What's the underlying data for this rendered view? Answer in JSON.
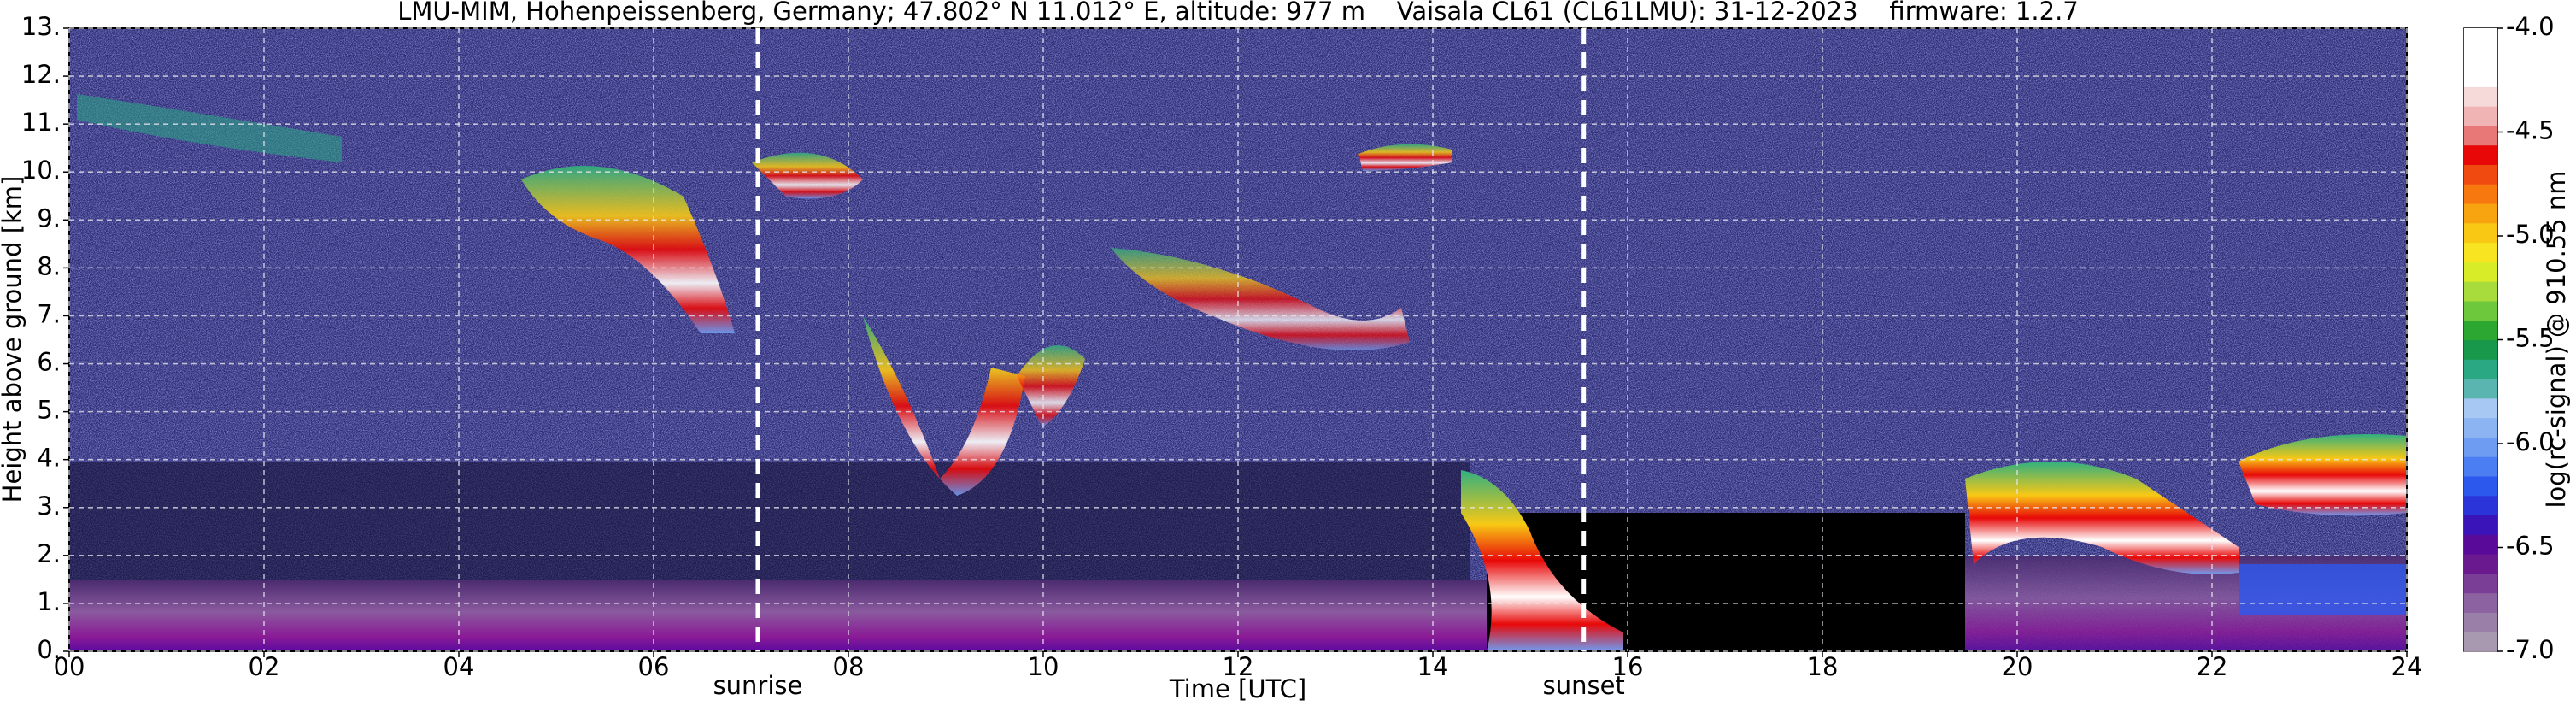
{
  "chart_data": {
    "type": "heatmap",
    "title": "LMU-MIM, Hohenpeissenberg, Germany; 47.802° N 11.012° E, altitude: 977 m    Vaisala CL61 (CL61LMU): 31-12-2023    firmware: 1.2.7",
    "x_label": "Time [UTC]",
    "y_label": "Height above ground [km]",
    "colorbar_label": "log(rc-signal) @ 910.55 nm",
    "xlim": [
      0,
      24
    ],
    "xticks": [
      {
        "value": 0,
        "label": "00"
      },
      {
        "value": 2,
        "label": "02"
      },
      {
        "value": 4,
        "label": "04"
      },
      {
        "value": 6,
        "label": "06"
      },
      {
        "value": 8,
        "label": "08"
      },
      {
        "value": 10,
        "label": "10"
      },
      {
        "value": 12,
        "label": "12"
      },
      {
        "value": 14,
        "label": "14"
      },
      {
        "value": 16,
        "label": "16"
      },
      {
        "value": 18,
        "label": "18"
      },
      {
        "value": 20,
        "label": "20"
      },
      {
        "value": 22,
        "label": "22"
      },
      {
        "value": 24,
        "label": "24"
      }
    ],
    "ylim": [
      0,
      13
    ],
    "yticks": [
      {
        "value": 0,
        "label": "0."
      },
      {
        "value": 1,
        "label": "1."
      },
      {
        "value": 2,
        "label": "2."
      },
      {
        "value": 3,
        "label": "3."
      },
      {
        "value": 4,
        "label": "4."
      },
      {
        "value": 5,
        "label": "5."
      },
      {
        "value": 6,
        "label": "6."
      },
      {
        "value": 7,
        "label": "7."
      },
      {
        "value": 8,
        "label": "8."
      },
      {
        "value": 9,
        "label": "9."
      },
      {
        "value": 10,
        "label": "10."
      },
      {
        "value": 11,
        "label": "11."
      },
      {
        "value": 12,
        "label": "12."
      },
      {
        "value": 13,
        "label": "13."
      }
    ],
    "clim": [
      -7,
      -4
    ],
    "colorbar_ticks": [
      {
        "value": -7,
        "label": "-7.0"
      },
      -6.5,
      {
        "value": -6,
        "label": "-6.0"
      },
      -5.5,
      {
        "value": -5,
        "label": "-5.0"
      },
      -4.5,
      {
        "value": -4,
        "label": "-4.0"
      }
    ],
    "colors": [
      "#a898b0",
      "#9a80a8",
      "#8c62a0",
      "#7a3e96",
      "#6a1a8e",
      "#5a0a98",
      "#3a14b8",
      "#2a34d8",
      "#2c58ee",
      "#4a7ef2",
      "#6e9cf2",
      "#8cb4f2",
      "#a8c8f4",
      "#5ab4b0",
      "#2aa884",
      "#18984a",
      "#2ca832",
      "#6ec83c",
      "#a8dc3c",
      "#d8ec28",
      "#f8e420",
      "#f8c814",
      "#f8a410",
      "#f87810",
      "#f04a10",
      "#e80808",
      "#e87878",
      "#f0b4b4",
      "#f6dada",
      "#ffffff",
      "#ffffff",
      "#ffffff"
    ],
    "grid": true,
    "annotations": [
      {
        "label": "sunrise",
        "x": 7.07
      },
      {
        "label": "sunset",
        "x": 15.55
      }
    ]
  }
}
